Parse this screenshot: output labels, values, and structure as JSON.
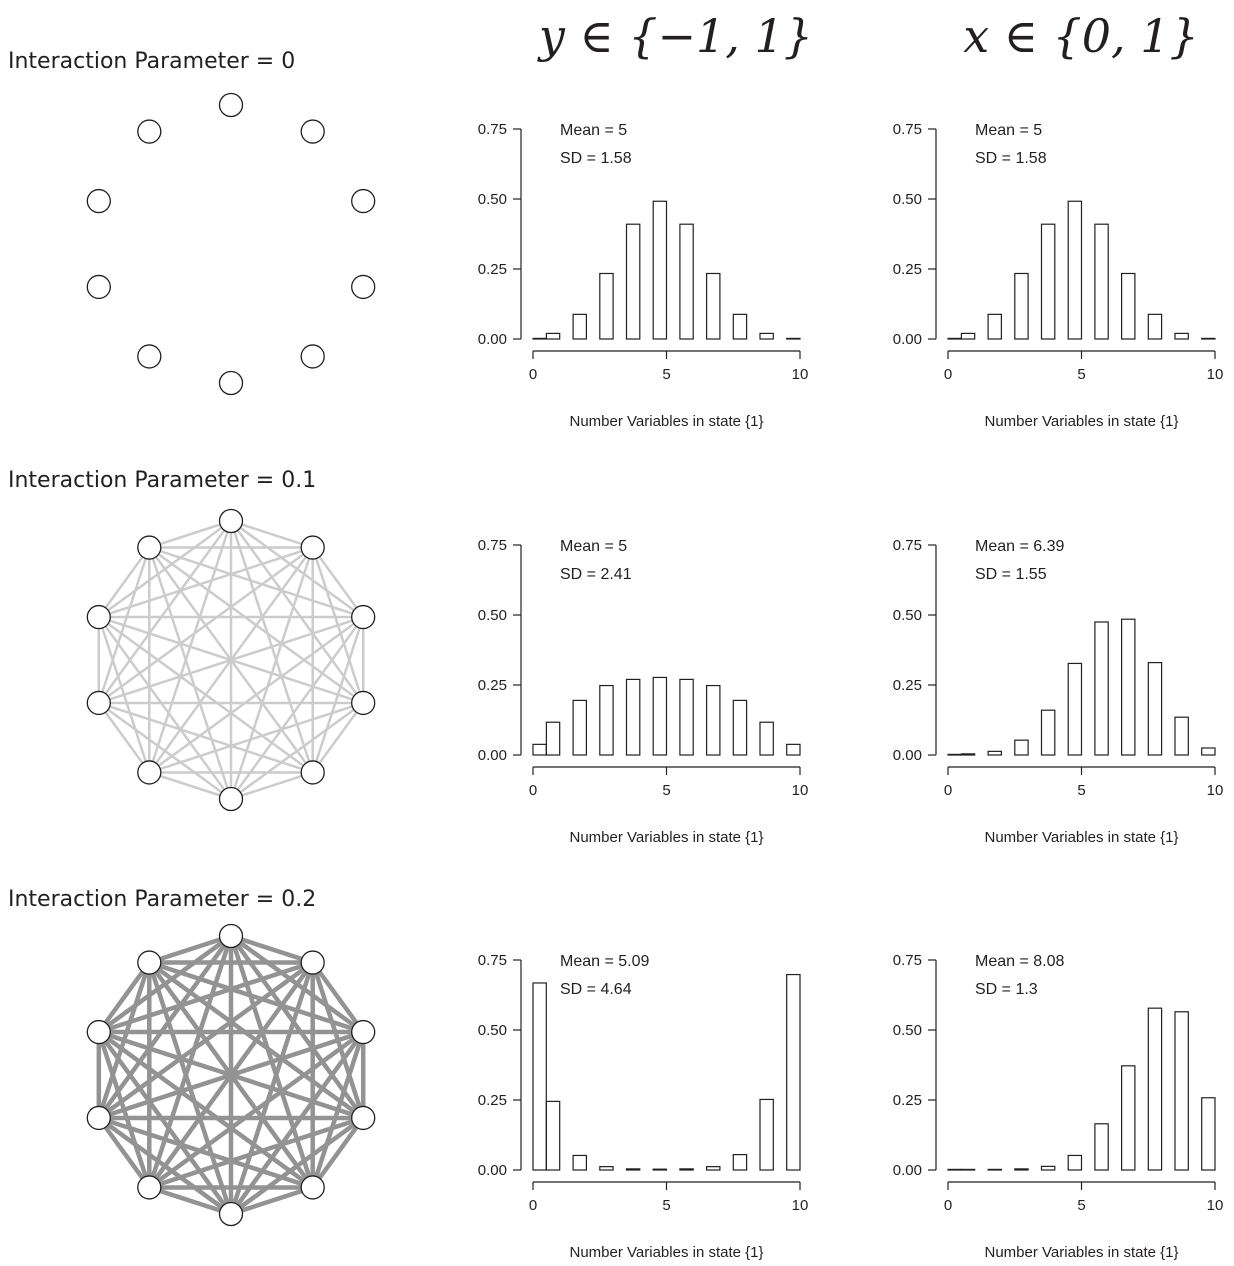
{
  "column_headers": [
    "y ∈ {−1, 1}",
    "x ∈ {0, 1}"
  ],
  "rows": [
    {
      "title": "Interaction Parameter = 0",
      "edge_color": "",
      "edge_weight": 0
    },
    {
      "title": "Interaction Parameter = 0.1",
      "edge_color": "#cccccc",
      "edge_weight": 1
    },
    {
      "title": "Interaction Parameter = 0.2",
      "edge_color": "#939393",
      "edge_weight": 2
    }
  ],
  "network": {
    "node_count": 10,
    "node_fill": "#ffffff",
    "node_stroke": "#231f20"
  },
  "chart_data": [
    {
      "type": "bar",
      "row": 0,
      "col": 0,
      "x": [
        0,
        1,
        2,
        3,
        4,
        5,
        6,
        7,
        8,
        9,
        10
      ],
      "values": [
        0.002,
        0.02,
        0.088,
        0.234,
        0.41,
        0.492,
        0.41,
        0.234,
        0.088,
        0.02,
        0.002
      ],
      "mean_label": "Mean = 5",
      "sd_label": "SD = 1.58",
      "xlabel": "Number Variables in state {1}",
      "ylim": [
        0,
        0.75
      ],
      "yticks": [
        "0.00",
        "0.25",
        "0.50",
        "0.75"
      ],
      "xticks": [
        "0",
        "5",
        "10"
      ],
      "xtick_values": [
        0,
        5,
        10
      ]
    },
    {
      "type": "bar",
      "row": 0,
      "col": 1,
      "x": [
        0,
        1,
        2,
        3,
        4,
        5,
        6,
        7,
        8,
        9,
        10
      ],
      "values": [
        0.002,
        0.02,
        0.088,
        0.234,
        0.41,
        0.492,
        0.41,
        0.234,
        0.088,
        0.02,
        0.002
      ],
      "mean_label": "Mean = 5",
      "sd_label": "SD = 1.58",
      "xlabel": "Number Variables in state {1}",
      "ylim": [
        0,
        0.75
      ],
      "yticks": [
        "0.00",
        "0.25",
        "0.50",
        "0.75"
      ],
      "xticks": [
        "0",
        "5",
        "10"
      ],
      "xtick_values": [
        0,
        5,
        10
      ]
    },
    {
      "type": "bar",
      "row": 1,
      "col": 0,
      "x": [
        0,
        1,
        2,
        3,
        4,
        5,
        6,
        7,
        8,
        9,
        10
      ],
      "values": [
        0.038,
        0.117,
        0.195,
        0.248,
        0.27,
        0.277,
        0.27,
        0.248,
        0.195,
        0.117,
        0.038
      ],
      "mean_label": "Mean = 5",
      "sd_label": "SD = 2.41",
      "xlabel": "Number Variables in state {1}",
      "ylim": [
        0,
        0.75
      ],
      "yticks": [
        "0.00",
        "0.25",
        "0.50",
        "0.75"
      ],
      "xticks": [
        "0",
        "5",
        "10"
      ],
      "xtick_values": [
        0,
        5,
        10
      ]
    },
    {
      "type": "bar",
      "row": 1,
      "col": 1,
      "x": [
        0,
        1,
        2,
        3,
        4,
        5,
        6,
        7,
        8,
        9,
        10
      ],
      "values": [
        0.001,
        0.004,
        0.013,
        0.053,
        0.16,
        0.327,
        0.475,
        0.485,
        0.33,
        0.135,
        0.025
      ],
      "mean_label": "Mean = 6.39",
      "sd_label": "SD = 1.55",
      "xlabel": "Number Variables in state {1}",
      "ylim": [
        0,
        0.75
      ],
      "yticks": [
        "0.00",
        "0.25",
        "0.50",
        "0.75"
      ],
      "xticks": [
        "0",
        "5",
        "10"
      ],
      "xtick_values": [
        0,
        5,
        10
      ]
    },
    {
      "type": "bar",
      "row": 2,
      "col": 0,
      "x": [
        0,
        1,
        2,
        3,
        4,
        5,
        6,
        7,
        8,
        9,
        10
      ],
      "values": [
        0.668,
        0.245,
        0.052,
        0.012,
        0.004,
        0.003,
        0.004,
        0.012,
        0.055,
        0.252,
        0.698
      ],
      "mean_label": "Mean = 5.09",
      "sd_label": "SD = 4.64",
      "xlabel": "Number Variables in state {1}",
      "ylim": [
        0,
        0.75
      ],
      "yticks": [
        "0.00",
        "0.25",
        "0.50",
        "0.75"
      ],
      "xticks": [
        "0",
        "5",
        "10"
      ],
      "xtick_values": [
        0,
        5,
        10
      ]
    },
    {
      "type": "bar",
      "row": 2,
      "col": 1,
      "x": [
        0,
        1,
        2,
        3,
        4,
        5,
        6,
        7,
        8,
        9,
        10
      ],
      "values": [
        0.0,
        0.0005,
        0.002,
        0.004,
        0.013,
        0.052,
        0.165,
        0.372,
        0.578,
        0.565,
        0.258
      ],
      "mean_label": "Mean = 8.08",
      "sd_label": "SD = 1.3",
      "xlabel": "Number Variables in state {1}",
      "ylim": [
        0,
        0.75
      ],
      "yticks": [
        "0.00",
        "0.25",
        "0.50",
        "0.75"
      ],
      "xticks": [
        "0",
        "5",
        "10"
      ],
      "xtick_values": [
        0,
        5,
        10
      ]
    }
  ]
}
